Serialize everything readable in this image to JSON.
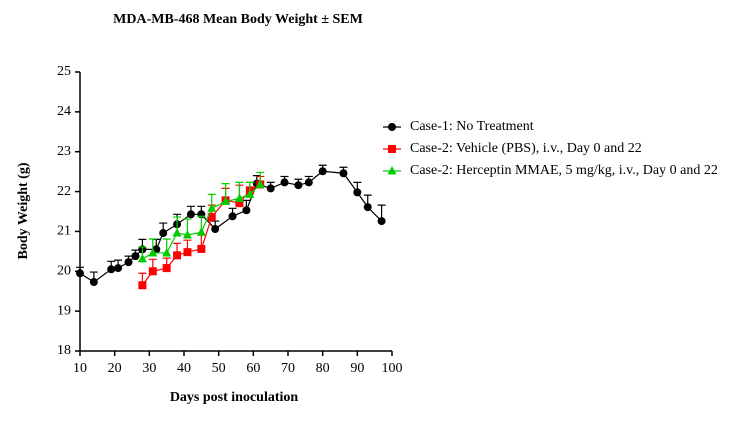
{
  "chart_data": {
    "type": "line",
    "title": "MDA-MB-468 Mean Body Weight ± SEM",
    "xlabel": "Days post inoculation",
    "ylabel": "Body Weight (g)",
    "xlim": [
      10,
      100
    ],
    "xticks": [
      10,
      20,
      30,
      40,
      50,
      60,
      70,
      80,
      90,
      100
    ],
    "ylim": [
      18,
      25
    ],
    "yticks": [
      18,
      19,
      20,
      21,
      22,
      23,
      24,
      25
    ],
    "legend": "right",
    "series": [
      {
        "name": "Case-1: No Treatment",
        "color": "#000000",
        "marker": "circle",
        "x": [
          10,
          14,
          19,
          21,
          24,
          26,
          28,
          32,
          34,
          38,
          42,
          45,
          49,
          54,
          58,
          61,
          65,
          69,
          73,
          76,
          80,
          86,
          90,
          93,
          97
        ],
        "values": [
          19.95,
          19.73,
          20.05,
          20.08,
          20.23,
          20.38,
          20.55,
          20.55,
          20.96,
          21.18,
          21.43,
          21.43,
          21.06,
          21.38,
          21.53,
          22.2,
          22.08,
          22.23,
          22.16,
          22.23,
          22.51,
          22.46,
          21.98,
          21.61,
          21.26
        ],
        "errors": [
          0.15,
          0.25,
          0.2,
          0.2,
          0.15,
          0.15,
          0.25,
          0.25,
          0.25,
          0.25,
          0.2,
          0.2,
          0.2,
          0.2,
          0.25,
          0.2,
          0.15,
          0.15,
          0.15,
          0.15,
          0.15,
          0.15,
          0.25,
          0.3,
          0.4
        ]
      },
      {
        "name": "Case-2: Vehicle (PBS), i.v., Day 0 and 22",
        "color": "#ff0000",
        "marker": "square",
        "x": [
          28,
          31,
          35,
          38,
          41,
          45,
          48,
          52,
          56,
          59,
          62
        ],
        "values": [
          19.65,
          20.0,
          20.08,
          20.4,
          20.48,
          20.56,
          21.36,
          21.78,
          21.71,
          22.03,
          22.18
        ],
        "errors": [
          0.3,
          0.3,
          0.25,
          0.3,
          0.3,
          0.35,
          0.3,
          0.3,
          0.45,
          0.2,
          0.2
        ]
      },
      {
        "name": "Case-2: Herceptin MMAE, 5 mg/kg, i.v., Day 0 and 22",
        "color": "#00cc00",
        "marker": "triangle",
        "x": [
          28,
          31,
          35,
          38,
          41,
          45,
          48,
          52,
          56,
          59,
          62
        ],
        "values": [
          20.31,
          20.46,
          20.46,
          20.96,
          20.91,
          20.98,
          21.58,
          21.75,
          21.83,
          21.93,
          22.18
        ],
        "errors": [
          0.3,
          0.35,
          0.35,
          0.4,
          0.4,
          0.4,
          0.35,
          0.45,
          0.4,
          0.3,
          0.3
        ]
      }
    ]
  }
}
